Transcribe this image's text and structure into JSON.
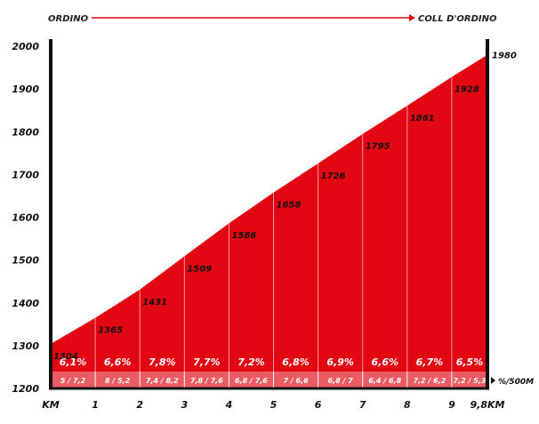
{
  "route": {
    "start": "ORDINO",
    "end": "COLL D'ORDINO"
  },
  "colors": {
    "fill": "#e30613",
    "sub_band": "#ea5b63",
    "axis": "#111111"
  },
  "chart_data": {
    "type": "area",
    "xlabel": "KM",
    "x_end_label": "9,8KM",
    "ylim": [
      1200,
      2000
    ],
    "yticks": [
      "1200",
      "1300",
      "1400",
      "1500",
      "1600",
      "1700",
      "1800",
      "1900",
      "2000"
    ],
    "xticks": [
      "KM",
      "1",
      "2",
      "3",
      "4",
      "5",
      "6",
      "7",
      "8",
      "9",
      "9,8KM"
    ],
    "x": [
      0,
      1,
      2,
      3,
      4,
      5,
      6,
      7,
      8,
      9,
      9.8
    ],
    "elevations": [
      1304,
      1365,
      1431,
      1509,
      1586,
      1658,
      1726,
      1795,
      1861,
      1928,
      1980
    ],
    "gradients": [
      "6,1%",
      "6,6%",
      "7,8%",
      "7,7%",
      "7,2%",
      "6,8%",
      "6,9%",
      "6,6%",
      "6,7%",
      "6,5%"
    ],
    "gradients_500m": [
      "5 / 7,2",
      "8 / 5,2",
      "7,4 / 8,2",
      "7,8 / 7,6",
      "6,8 / 7,6",
      "7 / 6,6",
      "6,8 / 7",
      "6,4 / 6,8",
      "7,2 / 6,2",
      "7,2 / 5,3"
    ],
    "gradient_unit": "%/500M"
  }
}
